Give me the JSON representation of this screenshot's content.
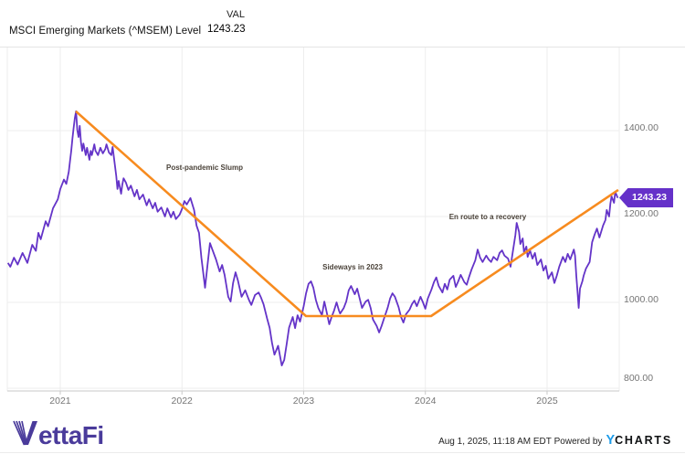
{
  "header": {
    "series_name": "MSCI Emerging Markets (^MSEM) Level",
    "val_label": "VAL",
    "val_value": "1243.23"
  },
  "chart_data": {
    "type": "line",
    "title": "MSCI Emerging Markets (^MSEM) Level",
    "x_range": [
      2020.565,
      2025.593
    ],
    "y_range": [
      793.6,
      1593.6
    ],
    "grid": true,
    "legend_position": "none",
    "x_ticks": [
      {
        "label": "2021",
        "value": 2021
      },
      {
        "label": "2022",
        "value": 2022
      },
      {
        "label": "2023",
        "value": 2023
      },
      {
        "label": "2024",
        "value": 2024
      },
      {
        "label": "2025",
        "value": 2025
      }
    ],
    "y_ticks": [
      {
        "label": "1400.00",
        "value": 1400
      },
      {
        "label": "1200.00",
        "value": 1200
      },
      {
        "label": "1000.00",
        "value": 1000
      },
      {
        "label": "800.00",
        "value": 800
      }
    ],
    "last_value_label": "1243.23",
    "series_color": "#6434c8",
    "trend_color": "#f78b1f",
    "annotation_color": "#4a4239",
    "annotations": [
      {
        "text": "Post-pandemic Slump",
        "x": 2022.186,
        "y": 1315
      },
      {
        "text": "Sideways in 2023",
        "x": 2023.402,
        "y": 1083
      },
      {
        "text": "En route to a recovery",
        "x": 2024.512,
        "y": 1200
      }
    ],
    "trend_line": {
      "points": [
        [
          2021.128,
          1445
        ],
        [
          2023.019,
          968
        ],
        [
          2024.047,
          968
        ],
        [
          2025.585,
          1262
        ]
      ]
    },
    "series": [
      {
        "name": "MSCI Emerging Markets (^MSEM) Level",
        "points": [
          [
            2020.57,
            1092
          ],
          [
            2020.59,
            1083
          ],
          [
            2020.62,
            1104
          ],
          [
            2020.65,
            1088
          ],
          [
            2020.69,
            1115
          ],
          [
            2020.73,
            1092
          ],
          [
            2020.77,
            1134
          ],
          [
            2020.8,
            1120
          ],
          [
            2020.82,
            1162
          ],
          [
            2020.84,
            1147
          ],
          [
            2020.88,
            1189
          ],
          [
            2020.9,
            1177
          ],
          [
            2020.94,
            1219
          ],
          [
            2020.98,
            1240
          ],
          [
            2021.0,
            1264
          ],
          [
            2021.03,
            1286
          ],
          [
            2021.05,
            1276
          ],
          [
            2021.07,
            1304
          ],
          [
            2021.08,
            1328
          ],
          [
            2021.09,
            1353
          ],
          [
            2021.1,
            1381
          ],
          [
            2021.11,
            1406
          ],
          [
            2021.12,
            1430
          ],
          [
            2021.13,
            1445
          ],
          [
            2021.14,
            1402
          ],
          [
            2021.15,
            1385
          ],
          [
            2021.16,
            1411
          ],
          [
            2021.17,
            1374
          ],
          [
            2021.18,
            1353
          ],
          [
            2021.19,
            1370
          ],
          [
            2021.21,
            1343
          ],
          [
            2021.22,
            1360
          ],
          [
            2021.24,
            1332
          ],
          [
            2021.25,
            1353
          ],
          [
            2021.26,
            1343
          ],
          [
            2021.28,
            1368
          ],
          [
            2021.29,
            1353
          ],
          [
            2021.31,
            1343
          ],
          [
            2021.33,
            1360
          ],
          [
            2021.35,
            1347
          ],
          [
            2021.37,
            1357
          ],
          [
            2021.38,
            1368
          ],
          [
            2021.4,
            1349
          ],
          [
            2021.42,
            1343
          ],
          [
            2021.43,
            1362
          ],
          [
            2021.46,
            1294
          ],
          [
            2021.47,
            1264
          ],
          [
            2021.48,
            1283
          ],
          [
            2021.5,
            1253
          ],
          [
            2021.51,
            1274
          ],
          [
            2021.52,
            1289
          ],
          [
            2021.54,
            1279
          ],
          [
            2021.56,
            1262
          ],
          [
            2021.58,
            1272
          ],
          [
            2021.61,
            1247
          ],
          [
            2021.63,
            1262
          ],
          [
            2021.65,
            1240
          ],
          [
            2021.68,
            1251
          ],
          [
            2021.71,
            1226
          ],
          [
            2021.73,
            1240
          ],
          [
            2021.76,
            1219
          ],
          [
            2021.78,
            1232
          ],
          [
            2021.8,
            1211
          ],
          [
            2021.83,
            1221
          ],
          [
            2021.86,
            1200
          ],
          [
            2021.88,
            1219
          ],
          [
            2021.91,
            1198
          ],
          [
            2021.93,
            1211
          ],
          [
            2021.95,
            1194
          ],
          [
            2021.98,
            1204
          ],
          [
            2022.0,
            1217
          ],
          [
            2022.02,
            1236
          ],
          [
            2022.04,
            1228
          ],
          [
            2022.07,
            1243
          ],
          [
            2022.1,
            1215
          ],
          [
            2022.12,
            1179
          ],
          [
            2022.14,
            1162
          ],
          [
            2022.16,
            1104
          ],
          [
            2022.19,
            1034
          ],
          [
            2022.21,
            1087
          ],
          [
            2022.23,
            1138
          ],
          [
            2022.25,
            1123
          ],
          [
            2022.28,
            1100
          ],
          [
            2022.31,
            1072
          ],
          [
            2022.33,
            1087
          ],
          [
            2022.35,
            1064
          ],
          [
            2022.38,
            1013
          ],
          [
            2022.4,
            1002
          ],
          [
            2022.42,
            1045
          ],
          [
            2022.44,
            1070
          ],
          [
            2022.46,
            1051
          ],
          [
            2022.49,
            1013
          ],
          [
            2022.52,
            1028
          ],
          [
            2022.55,
            1006
          ],
          [
            2022.57,
            994
          ],
          [
            2022.6,
            1017
          ],
          [
            2022.63,
            1023
          ],
          [
            2022.65,
            1011
          ],
          [
            2022.67,
            996
          ],
          [
            2022.7,
            962
          ],
          [
            2022.72,
            941
          ],
          [
            2022.74,
            906
          ],
          [
            2022.76,
            878
          ],
          [
            2022.79,
            899
          ],
          [
            2022.82,
            853
          ],
          [
            2022.84,
            866
          ],
          [
            2022.86,
            902
          ],
          [
            2022.88,
            941
          ],
          [
            2022.91,
            966
          ],
          [
            2022.93,
            940
          ],
          [
            2022.95,
            970
          ],
          [
            2022.97,
            955
          ],
          [
            2023.0,
            991
          ],
          [
            2023.02,
            1021
          ],
          [
            2023.04,
            1043
          ],
          [
            2023.06,
            1049
          ],
          [
            2023.08,
            1034
          ],
          [
            2023.1,
            1006
          ],
          [
            2023.12,
            987
          ],
          [
            2023.15,
            970
          ],
          [
            2023.17,
            1002
          ],
          [
            2023.18,
            989
          ],
          [
            2023.21,
            949
          ],
          [
            2023.23,
            966
          ],
          [
            2023.25,
            981
          ],
          [
            2023.27,
            1000
          ],
          [
            2023.29,
            981
          ],
          [
            2023.3,
            974
          ],
          [
            2023.33,
            987
          ],
          [
            2023.35,
            1002
          ],
          [
            2023.37,
            1028
          ],
          [
            2023.39,
            1038
          ],
          [
            2023.42,
            1019
          ],
          [
            2023.44,
            1032
          ],
          [
            2023.46,
            1009
          ],
          [
            2023.48,
            987
          ],
          [
            2023.51,
            1002
          ],
          [
            2023.53,
            1006
          ],
          [
            2023.55,
            987
          ],
          [
            2023.57,
            960
          ],
          [
            2023.6,
            945
          ],
          [
            2023.62,
            930
          ],
          [
            2023.64,
            945
          ],
          [
            2023.66,
            962
          ],
          [
            2023.69,
            987
          ],
          [
            2023.71,
            1009
          ],
          [
            2023.73,
            1021
          ],
          [
            2023.75,
            1013
          ],
          [
            2023.78,
            989
          ],
          [
            2023.8,
            966
          ],
          [
            2023.82,
            953
          ],
          [
            2023.84,
            972
          ],
          [
            2023.87,
            983
          ],
          [
            2023.89,
            996
          ],
          [
            2023.91,
            1004
          ],
          [
            2023.93,
            991
          ],
          [
            2023.96,
            1013
          ],
          [
            2023.98,
            1000
          ],
          [
            2024.0,
            985
          ],
          [
            2024.02,
            1009
          ],
          [
            2024.05,
            1030
          ],
          [
            2024.07,
            1047
          ],
          [
            2024.09,
            1058
          ],
          [
            2024.11,
            1038
          ],
          [
            2024.14,
            1023
          ],
          [
            2024.16,
            1043
          ],
          [
            2024.18,
            1030
          ],
          [
            2024.2,
            1053
          ],
          [
            2024.23,
            1062
          ],
          [
            2024.25,
            1036
          ],
          [
            2024.27,
            1049
          ],
          [
            2024.29,
            1064
          ],
          [
            2024.32,
            1047
          ],
          [
            2024.34,
            1041
          ],
          [
            2024.36,
            1060
          ],
          [
            2024.38,
            1077
          ],
          [
            2024.41,
            1098
          ],
          [
            2024.43,
            1123
          ],
          [
            2024.45,
            1104
          ],
          [
            2024.47,
            1094
          ],
          [
            2024.5,
            1109
          ],
          [
            2024.52,
            1100
          ],
          [
            2024.54,
            1094
          ],
          [
            2024.56,
            1106
          ],
          [
            2024.59,
            1098
          ],
          [
            2024.61,
            1115
          ],
          [
            2024.63,
            1121
          ],
          [
            2024.65,
            1109
          ],
          [
            2024.68,
            1102
          ],
          [
            2024.7,
            1083
          ],
          [
            2024.72,
            1121
          ],
          [
            2024.74,
            1157
          ],
          [
            2024.75,
            1185
          ],
          [
            2024.77,
            1164
          ],
          [
            2024.78,
            1136
          ],
          [
            2024.8,
            1149
          ],
          [
            2024.81,
            1117
          ],
          [
            2024.83,
            1130
          ],
          [
            2024.84,
            1106
          ],
          [
            2024.86,
            1121
          ],
          [
            2024.88,
            1102
          ],
          [
            2024.9,
            1115
          ],
          [
            2024.92,
            1087
          ],
          [
            2024.95,
            1100
          ],
          [
            2024.97,
            1074
          ],
          [
            2024.99,
            1085
          ],
          [
            2025.01,
            1055
          ],
          [
            2025.04,
            1070
          ],
          [
            2025.06,
            1045
          ],
          [
            2025.08,
            1062
          ],
          [
            2025.1,
            1083
          ],
          [
            2025.13,
            1106
          ],
          [
            2025.15,
            1094
          ],
          [
            2025.17,
            1113
          ],
          [
            2025.19,
            1100
          ],
          [
            2025.22,
            1123
          ],
          [
            2025.23,
            1109
          ],
          [
            2025.24,
            1062
          ],
          [
            2025.25,
            1026
          ],
          [
            2025.26,
            987
          ],
          [
            2025.27,
            1032
          ],
          [
            2025.29,
            1049
          ],
          [
            2025.3,
            1062
          ],
          [
            2025.32,
            1079
          ],
          [
            2025.35,
            1094
          ],
          [
            2025.37,
            1140
          ],
          [
            2025.39,
            1157
          ],
          [
            2025.41,
            1172
          ],
          [
            2025.43,
            1151
          ],
          [
            2025.46,
            1179
          ],
          [
            2025.48,
            1192
          ],
          [
            2025.49,
            1215
          ],
          [
            2025.51,
            1200
          ],
          [
            2025.52,
            1230
          ],
          [
            2025.53,
            1247
          ],
          [
            2025.55,
            1232
          ],
          [
            2025.56,
            1257
          ],
          [
            2025.57,
            1251
          ],
          [
            2025.58,
            1243.23
          ]
        ]
      }
    ]
  },
  "footer": {
    "brand": "VettaFi",
    "timestamp": "Aug 1, 2025, 11:18 AM EDT",
    "powered_by": "Powered by",
    "charts_brand_y": "Y",
    "charts_brand_rest": "CHARTS"
  }
}
